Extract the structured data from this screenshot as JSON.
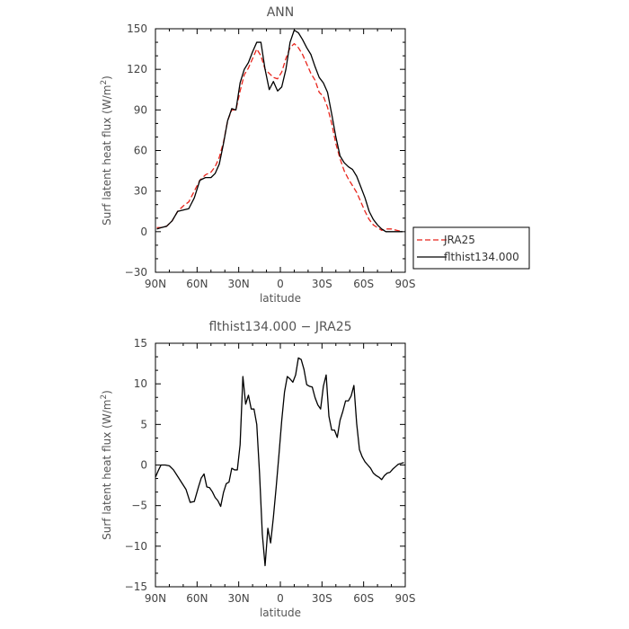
{
  "chart_data": [
    {
      "type": "line",
      "title": "ANN",
      "xlabel": "latitude",
      "ylabel": "Surf latent heat flux (W/m",
      "ylabel_sup": "2",
      "ylabel_end": ")",
      "xlim": [
        90,
        -90
      ],
      "ylim": [
        -30,
        150
      ],
      "xticks": [
        90,
        60,
        30,
        0,
        -30,
        -60,
        -90
      ],
      "xtick_labels": [
        "90N",
        "60N",
        "30N",
        "0",
        "30S",
        "60S",
        "90S"
      ],
      "yticks": [
        -30,
        0,
        30,
        60,
        90,
        120,
        150
      ],
      "ytick_labels": [
        "−30",
        "0",
        "30",
        "60",
        "90",
        "120",
        "150"
      ],
      "legend_position": "right",
      "series": [
        {
          "name": "JRA25",
          "color": "#e8251c",
          "dash": "dashed",
          "x": [
            89,
            86,
            82,
            78,
            74,
            70,
            66,
            62,
            58,
            54,
            50,
            47,
            44,
            41,
            38,
            35,
            32,
            29,
            26,
            23,
            20,
            17,
            14,
            11,
            8,
            5,
            2,
            -1,
            -4,
            -7,
            -10,
            -13,
            -16,
            -19,
            -22,
            -25,
            -28,
            -31,
            -34,
            -37,
            -40,
            -43,
            -46,
            -49,
            -52,
            -55,
            -58,
            -61,
            -64,
            -67,
            -70,
            -73,
            -76,
            -80,
            -84,
            -88
          ],
          "y": [
            3,
            3,
            4,
            8,
            15,
            19,
            22,
            30,
            38,
            42,
            44,
            48,
            55,
            66,
            82,
            90,
            90,
            104,
            116,
            121,
            128,
            135,
            130,
            120,
            117,
            114,
            113,
            118,
            128,
            136,
            139,
            136,
            131,
            124,
            117,
            112,
            103,
            100,
            92,
            80,
            65,
            54,
            45,
            39,
            34,
            29,
            22,
            15,
            9,
            5,
            3,
            1,
            2,
            2,
            1,
            0
          ]
        },
        {
          "name": "flthist134.000",
          "color": "#000000",
          "dash": "solid",
          "x": [
            89,
            86,
            82,
            78,
            74,
            70,
            66,
            62,
            58,
            54,
            50,
            47,
            44,
            41,
            38,
            35,
            32,
            29,
            26,
            23,
            20,
            17,
            14,
            11,
            8,
            5,
            2,
            -1,
            -4,
            -7,
            -10,
            -13,
            -16,
            -19,
            -22,
            -25,
            -28,
            -31,
            -34,
            -37,
            -40,
            -43,
            -46,
            -49,
            -52,
            -55,
            -58,
            -61,
            -64,
            -67,
            -70,
            -73,
            -76,
            -80,
            -84,
            -88
          ],
          "y": [
            2,
            3,
            4,
            8,
            15,
            16,
            17,
            25,
            38,
            40,
            40,
            43,
            50,
            65,
            82,
            91,
            90,
            110,
            120,
            125,
            133,
            140,
            140,
            120,
            105,
            111,
            104,
            107,
            120,
            140,
            149,
            147,
            142,
            136,
            131,
            122,
            114,
            110,
            103,
            87,
            70,
            56,
            51,
            48,
            46,
            41,
            33,
            25,
            15,
            9,
            5,
            2,
            0,
            0,
            0,
            0
          ]
        }
      ]
    },
    {
      "type": "line",
      "title": "flthist134.000 − JRA25",
      "xlabel": "latitude",
      "ylabel": "Surf latent heat flux (W/m",
      "ylabel_sup": "2",
      "ylabel_end": ")",
      "xlim": [
        90,
        -90
      ],
      "ylim": [
        -15,
        15
      ],
      "xticks": [
        90,
        60,
        30,
        0,
        -30,
        -60,
        -90
      ],
      "xtick_labels": [
        "90N",
        "60N",
        "30N",
        "0",
        "30S",
        "60S",
        "90S"
      ],
      "yticks": [
        -15,
        -10,
        -5,
        0,
        5,
        10,
        15
      ],
      "ytick_labels": [
        "−15",
        "−10",
        "−5",
        "0",
        "5",
        "10",
        "15"
      ],
      "series": [
        {
          "color": "#000000",
          "dash": "solid",
          "x": [
            90,
            88,
            86,
            83,
            80,
            77,
            74,
            71,
            68,
            65,
            62,
            59,
            57,
            55,
            53,
            51,
            49,
            47,
            45,
            43,
            41,
            39,
            37,
            35,
            33,
            31,
            29,
            27,
            25,
            23,
            21,
            19,
            17,
            15,
            13,
            11,
            9,
            7,
            5,
            3,
            1,
            -1,
            -3,
            -5,
            -7,
            -9,
            -11,
            -13,
            -15,
            -17,
            -19,
            -21,
            -23,
            -25,
            -27,
            -29,
            -31,
            -33,
            -35,
            -37,
            -39,
            -41,
            -43,
            -45,
            -47,
            -49,
            -51,
            -53,
            -55,
            -57,
            -59,
            -61,
            -63,
            -65,
            -67,
            -69,
            -71,
            -73,
            -75,
            -77,
            -79,
            -81,
            -83,
            -85,
            -87,
            -89
          ],
          "y": [
            -1.5,
            -0.7,
            0,
            0,
            -0.1,
            -0.6,
            -1.4,
            -2.2,
            -3,
            -4.6,
            -4.5,
            -2.7,
            -1.6,
            -1.1,
            -2.7,
            -2.8,
            -3.3,
            -4,
            -4.4,
            -5.1,
            -3.4,
            -2.3,
            -2.1,
            -0.4,
            -0.6,
            -0.6,
            2.5,
            10.9,
            7.5,
            8.6,
            6.9,
            6.9,
            5,
            -1,
            -8.5,
            -12.4,
            -7.8,
            -9.6,
            -6.4,
            -2.7,
            1.3,
            5.5,
            9,
            10.9,
            10.6,
            10.2,
            11.1,
            13.2,
            13,
            11.8,
            9.9,
            9.7,
            9.6,
            8.3,
            7.4,
            6.9,
            9.7,
            11.1,
            6,
            4.3,
            4.3,
            3.4,
            5.5,
            6.6,
            7.9,
            7.9,
            8.5,
            9.8,
            5.1,
            1.9,
            1,
            0.4,
            0,
            -0.4,
            -1,
            -1.3,
            -1.5,
            -1.8,
            -1.3,
            -1,
            -0.9,
            -0.5,
            -0.2,
            0.1,
            0.2,
            0.3
          ]
        }
      ]
    }
  ]
}
